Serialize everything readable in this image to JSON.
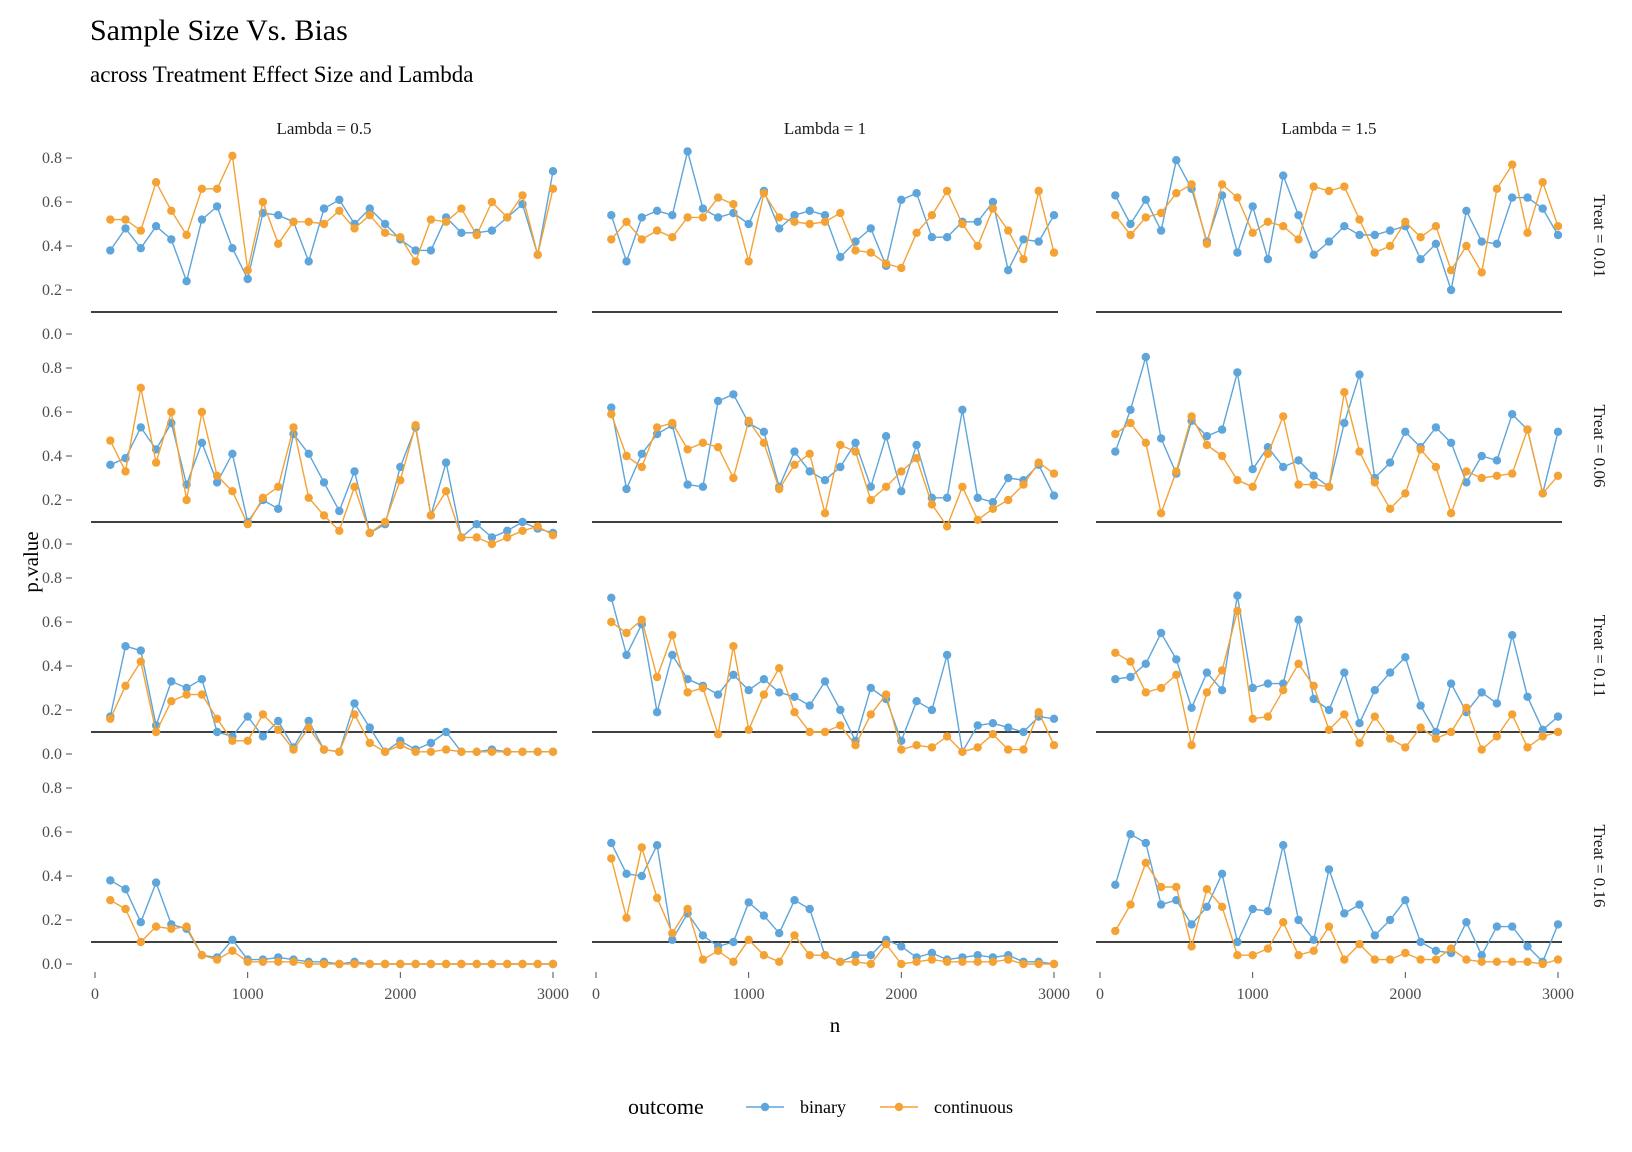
{
  "chart_data": {
    "type": "line",
    "title": "Sample Size Vs. Bias",
    "subtitle": "across Treatment Effect Size and Lambda",
    "xlabel": "n",
    "ylabel": "p.value",
    "xlim": [
      0,
      3000
    ],
    "ylim": [
      0,
      0.8
    ],
    "x_ticks": [
      0,
      1000,
      2000,
      3000
    ],
    "y_ticks": [
      0.0,
      0.2,
      0.4,
      0.6,
      0.8
    ],
    "x_tick_labels": [
      "0",
      "1000",
      "2000",
      "3000"
    ],
    "y_tick_labels": [
      "0.0",
      "0.2",
      "0.4",
      "0.6",
      "0.8"
    ],
    "reference_line_y": 0.1,
    "grid": false,
    "legend": {
      "title": "outcome",
      "position": "bottom",
      "entries": [
        {
          "name": "binary",
          "color": "#5DA5DA"
        },
        {
          "name": "continuous",
          "color": "#F5A235"
        }
      ]
    },
    "col_facets": [
      "Lambda = 0.5",
      "Lambda = 1",
      "Lambda = 1.5"
    ],
    "row_facets": [
      "Treat = 0.01",
      "Treat = 0.06",
      "Treat = 0.11",
      "Treat = 0.16"
    ],
    "x": [
      100,
      200,
      300,
      400,
      500,
      600,
      700,
      800,
      900,
      1000,
      1100,
      1200,
      1300,
      1400,
      1500,
      1600,
      1700,
      1800,
      1900,
      2000,
      2100,
      2200,
      2300,
      2400,
      2500,
      2600,
      2700,
      2800,
      2900,
      3000
    ],
    "panels": [
      {
        "row": 0,
        "col": 0,
        "binary": [
          0.38,
          0.48,
          0.39,
          0.49,
          0.43,
          0.24,
          0.52,
          0.58,
          0.39,
          0.25,
          0.55,
          0.54,
          0.51,
          0.33,
          0.57,
          0.61,
          0.5,
          0.57,
          0.5,
          0.43,
          0.38,
          0.38,
          0.53,
          0.46,
          0.46,
          0.47,
          0.53,
          0.59,
          0.36,
          0.74
        ],
        "continuous": [
          0.52,
          0.52,
          0.47,
          0.69,
          0.56,
          0.45,
          0.66,
          0.66,
          0.81,
          0.29,
          0.6,
          0.41,
          0.51,
          0.51,
          0.5,
          0.56,
          0.48,
          0.54,
          0.46,
          0.44,
          0.33,
          0.52,
          0.51,
          0.57,
          0.45,
          0.6,
          0.53,
          0.63,
          0.36,
          0.66
        ]
      },
      {
        "row": 0,
        "col": 1,
        "binary": [
          0.54,
          0.33,
          0.53,
          0.56,
          0.54,
          0.83,
          0.57,
          0.53,
          0.55,
          0.5,
          0.65,
          0.48,
          0.54,
          0.56,
          0.54,
          0.35,
          0.42,
          0.48,
          0.31,
          0.61,
          0.64,
          0.44,
          0.44,
          0.51,
          0.51,
          0.6,
          0.29,
          0.43,
          0.42,
          0.54
        ],
        "continuous": [
          0.43,
          0.51,
          0.43,
          0.47,
          0.44,
          0.53,
          0.53,
          0.62,
          0.59,
          0.33,
          0.64,
          0.53,
          0.51,
          0.5,
          0.51,
          0.55,
          0.38,
          0.37,
          0.32,
          0.3,
          0.46,
          0.54,
          0.65,
          0.5,
          0.4,
          0.57,
          0.47,
          0.34,
          0.65,
          0.37
        ]
      },
      {
        "row": 0,
        "col": 2,
        "binary": [
          0.63,
          0.5,
          0.61,
          0.47,
          0.79,
          0.66,
          0.42,
          0.63,
          0.37,
          0.58,
          0.34,
          0.72,
          0.54,
          0.36,
          0.42,
          0.49,
          0.45,
          0.45,
          0.47,
          0.49,
          0.34,
          0.41,
          0.2,
          0.56,
          0.42,
          0.41,
          0.62,
          0.62,
          0.57,
          0.45
        ],
        "continuous": [
          0.54,
          0.45,
          0.53,
          0.55,
          0.64,
          0.68,
          0.41,
          0.68,
          0.62,
          0.46,
          0.51,
          0.49,
          0.43,
          0.67,
          0.65,
          0.67,
          0.52,
          0.37,
          0.4,
          0.51,
          0.44,
          0.49,
          0.29,
          0.4,
          0.28,
          0.66,
          0.77,
          0.46,
          0.69,
          0.49
        ]
      },
      {
        "row": 1,
        "col": 0,
        "binary": [
          0.36,
          0.39,
          0.53,
          0.43,
          0.55,
          0.27,
          0.46,
          0.28,
          0.41,
          0.1,
          0.2,
          0.16,
          0.5,
          0.41,
          0.28,
          0.15,
          0.33,
          0.05,
          0.09,
          0.35,
          0.53,
          0.13,
          0.37,
          0.03,
          0.09,
          0.03,
          0.06,
          0.1,
          0.07,
          0.05
        ],
        "continuous": [
          0.47,
          0.33,
          0.71,
          0.37,
          0.6,
          0.2,
          0.6,
          0.31,
          0.24,
          0.09,
          0.21,
          0.26,
          0.53,
          0.21,
          0.13,
          0.06,
          0.26,
          0.05,
          0.1,
          0.29,
          0.54,
          0.13,
          0.24,
          0.03,
          0.03,
          0.0,
          0.03,
          0.06,
          0.08,
          0.04
        ]
      },
      {
        "row": 1,
        "col": 1,
        "binary": [
          0.62,
          0.25,
          0.41,
          0.5,
          0.54,
          0.27,
          0.26,
          0.65,
          0.68,
          0.55,
          0.51,
          0.26,
          0.42,
          0.33,
          0.29,
          0.35,
          0.46,
          0.26,
          0.49,
          0.24,
          0.45,
          0.21,
          0.21,
          0.61,
          0.21,
          0.19,
          0.3,
          0.29,
          0.36,
          0.22
        ],
        "continuous": [
          0.59,
          0.4,
          0.35,
          0.53,
          0.55,
          0.43,
          0.46,
          0.44,
          0.3,
          0.56,
          0.46,
          0.25,
          0.36,
          0.41,
          0.14,
          0.45,
          0.42,
          0.2,
          0.26,
          0.33,
          0.39,
          0.18,
          0.08,
          0.26,
          0.11,
          0.16,
          0.2,
          0.27,
          0.37,
          0.32
        ]
      },
      {
        "row": 1,
        "col": 2,
        "binary": [
          0.42,
          0.61,
          0.85,
          0.48,
          0.32,
          0.56,
          0.49,
          0.52,
          0.78,
          0.34,
          0.44,
          0.35,
          0.38,
          0.31,
          0.26,
          0.55,
          0.77,
          0.3,
          0.37,
          0.51,
          0.44,
          0.53,
          0.46,
          0.28,
          0.4,
          0.38,
          0.59,
          0.52,
          0.23,
          0.51
        ],
        "continuous": [
          0.5,
          0.55,
          0.46,
          0.14,
          0.33,
          0.58,
          0.45,
          0.4,
          0.29,
          0.26,
          0.41,
          0.58,
          0.27,
          0.27,
          0.26,
          0.69,
          0.42,
          0.28,
          0.16,
          0.23,
          0.43,
          0.35,
          0.14,
          0.33,
          0.3,
          0.31,
          0.32,
          0.52,
          0.23,
          0.31
        ]
      },
      {
        "row": 2,
        "col": 0,
        "binary": [
          0.17,
          0.49,
          0.47,
          0.13,
          0.33,
          0.3,
          0.34,
          0.1,
          0.08,
          0.17,
          0.08,
          0.15,
          0.03,
          0.15,
          0.02,
          0.01,
          0.23,
          0.12,
          0.01,
          0.06,
          0.02,
          0.05,
          0.1,
          0.01,
          0.01,
          0.02,
          0.01,
          0.01,
          0.01,
          0.01
        ],
        "continuous": [
          0.16,
          0.31,
          0.42,
          0.1,
          0.24,
          0.27,
          0.27,
          0.16,
          0.06,
          0.06,
          0.18,
          0.11,
          0.02,
          0.12,
          0.02,
          0.01,
          0.18,
          0.05,
          0.01,
          0.04,
          0.01,
          0.01,
          0.02,
          0.01,
          0.01,
          0.01,
          0.01,
          0.01,
          0.01,
          0.01
        ]
      },
      {
        "row": 2,
        "col": 1,
        "binary": [
          0.71,
          0.45,
          0.59,
          0.19,
          0.45,
          0.34,
          0.31,
          0.27,
          0.36,
          0.29,
          0.34,
          0.28,
          0.26,
          0.22,
          0.33,
          0.2,
          0.06,
          0.3,
          0.25,
          0.06,
          0.24,
          0.2,
          0.45,
          0.01,
          0.13,
          0.14,
          0.12,
          0.1,
          0.17,
          0.16
        ],
        "continuous": [
          0.6,
          0.55,
          0.61,
          0.35,
          0.54,
          0.28,
          0.3,
          0.09,
          0.49,
          0.11,
          0.27,
          0.39,
          0.19,
          0.1,
          0.1,
          0.13,
          0.04,
          0.18,
          0.27,
          0.02,
          0.04,
          0.03,
          0.08,
          0.01,
          0.03,
          0.09,
          0.02,
          0.02,
          0.19,
          0.04
        ]
      },
      {
        "row": 2,
        "col": 2,
        "binary": [
          0.34,
          0.35,
          0.41,
          0.55,
          0.43,
          0.21,
          0.37,
          0.29,
          0.72,
          0.3,
          0.32,
          0.32,
          0.61,
          0.25,
          0.2,
          0.37,
          0.14,
          0.29,
          0.37,
          0.44,
          0.22,
          0.1,
          0.32,
          0.19,
          0.28,
          0.23,
          0.54,
          0.26,
          0.11,
          0.17
        ],
        "continuous": [
          0.46,
          0.42,
          0.28,
          0.3,
          0.36,
          0.04,
          0.28,
          0.38,
          0.65,
          0.16,
          0.17,
          0.29,
          0.41,
          0.31,
          0.11,
          0.18,
          0.05,
          0.17,
          0.07,
          0.03,
          0.12,
          0.07,
          0.1,
          0.21,
          0.02,
          0.08,
          0.18,
          0.03,
          0.08,
          0.1
        ]
      },
      {
        "row": 3,
        "col": 0,
        "binary": [
          0.38,
          0.34,
          0.19,
          0.37,
          0.18,
          0.16,
          0.04,
          0.03,
          0.11,
          0.02,
          0.02,
          0.03,
          0.02,
          0.01,
          0.01,
          0.0,
          0.01,
          0.0,
          0.0,
          0.0,
          0.0,
          0.0,
          0.0,
          0.0,
          0.0,
          0.0,
          0.0,
          0.0,
          0.0,
          0.0
        ],
        "continuous": [
          0.29,
          0.25,
          0.1,
          0.17,
          0.16,
          0.17,
          0.04,
          0.02,
          0.06,
          0.01,
          0.01,
          0.01,
          0.01,
          0.0,
          0.0,
          0.0,
          0.0,
          0.0,
          0.0,
          0.0,
          0.0,
          0.0,
          0.0,
          0.0,
          0.0,
          0.0,
          0.0,
          0.0,
          0.0,
          0.0
        ]
      },
      {
        "row": 3,
        "col": 1,
        "binary": [
          0.55,
          0.41,
          0.4,
          0.54,
          0.11,
          0.23,
          0.13,
          0.08,
          0.1,
          0.28,
          0.22,
          0.14,
          0.29,
          0.25,
          0.04,
          0.01,
          0.04,
          0.04,
          0.11,
          0.08,
          0.03,
          0.05,
          0.02,
          0.03,
          0.04,
          0.03,
          0.04,
          0.01,
          0.01,
          0.0
        ],
        "continuous": [
          0.48,
          0.21,
          0.53,
          0.3,
          0.14,
          0.25,
          0.02,
          0.06,
          0.01,
          0.11,
          0.04,
          0.01,
          0.13,
          0.04,
          0.04,
          0.01,
          0.01,
          0.0,
          0.09,
          0.0,
          0.01,
          0.02,
          0.01,
          0.01,
          0.01,
          0.01,
          0.02,
          0.0,
          0.0,
          0.0
        ]
      },
      {
        "row": 3,
        "col": 2,
        "binary": [
          0.36,
          0.59,
          0.55,
          0.27,
          0.29,
          0.18,
          0.26,
          0.41,
          0.1,
          0.25,
          0.24,
          0.54,
          0.2,
          0.11,
          0.43,
          0.23,
          0.27,
          0.13,
          0.2,
          0.29,
          0.1,
          0.06,
          0.05,
          0.19,
          0.04,
          0.17,
          0.17,
          0.08,
          0.01,
          0.18
        ],
        "continuous": [
          0.15,
          0.27,
          0.46,
          0.35,
          0.35,
          0.08,
          0.34,
          0.26,
          0.04,
          0.04,
          0.07,
          0.19,
          0.04,
          0.06,
          0.17,
          0.02,
          0.09,
          0.02,
          0.02,
          0.05,
          0.02,
          0.02,
          0.07,
          0.02,
          0.01,
          0.01,
          0.01,
          0.01,
          0.0,
          0.02
        ]
      }
    ]
  }
}
